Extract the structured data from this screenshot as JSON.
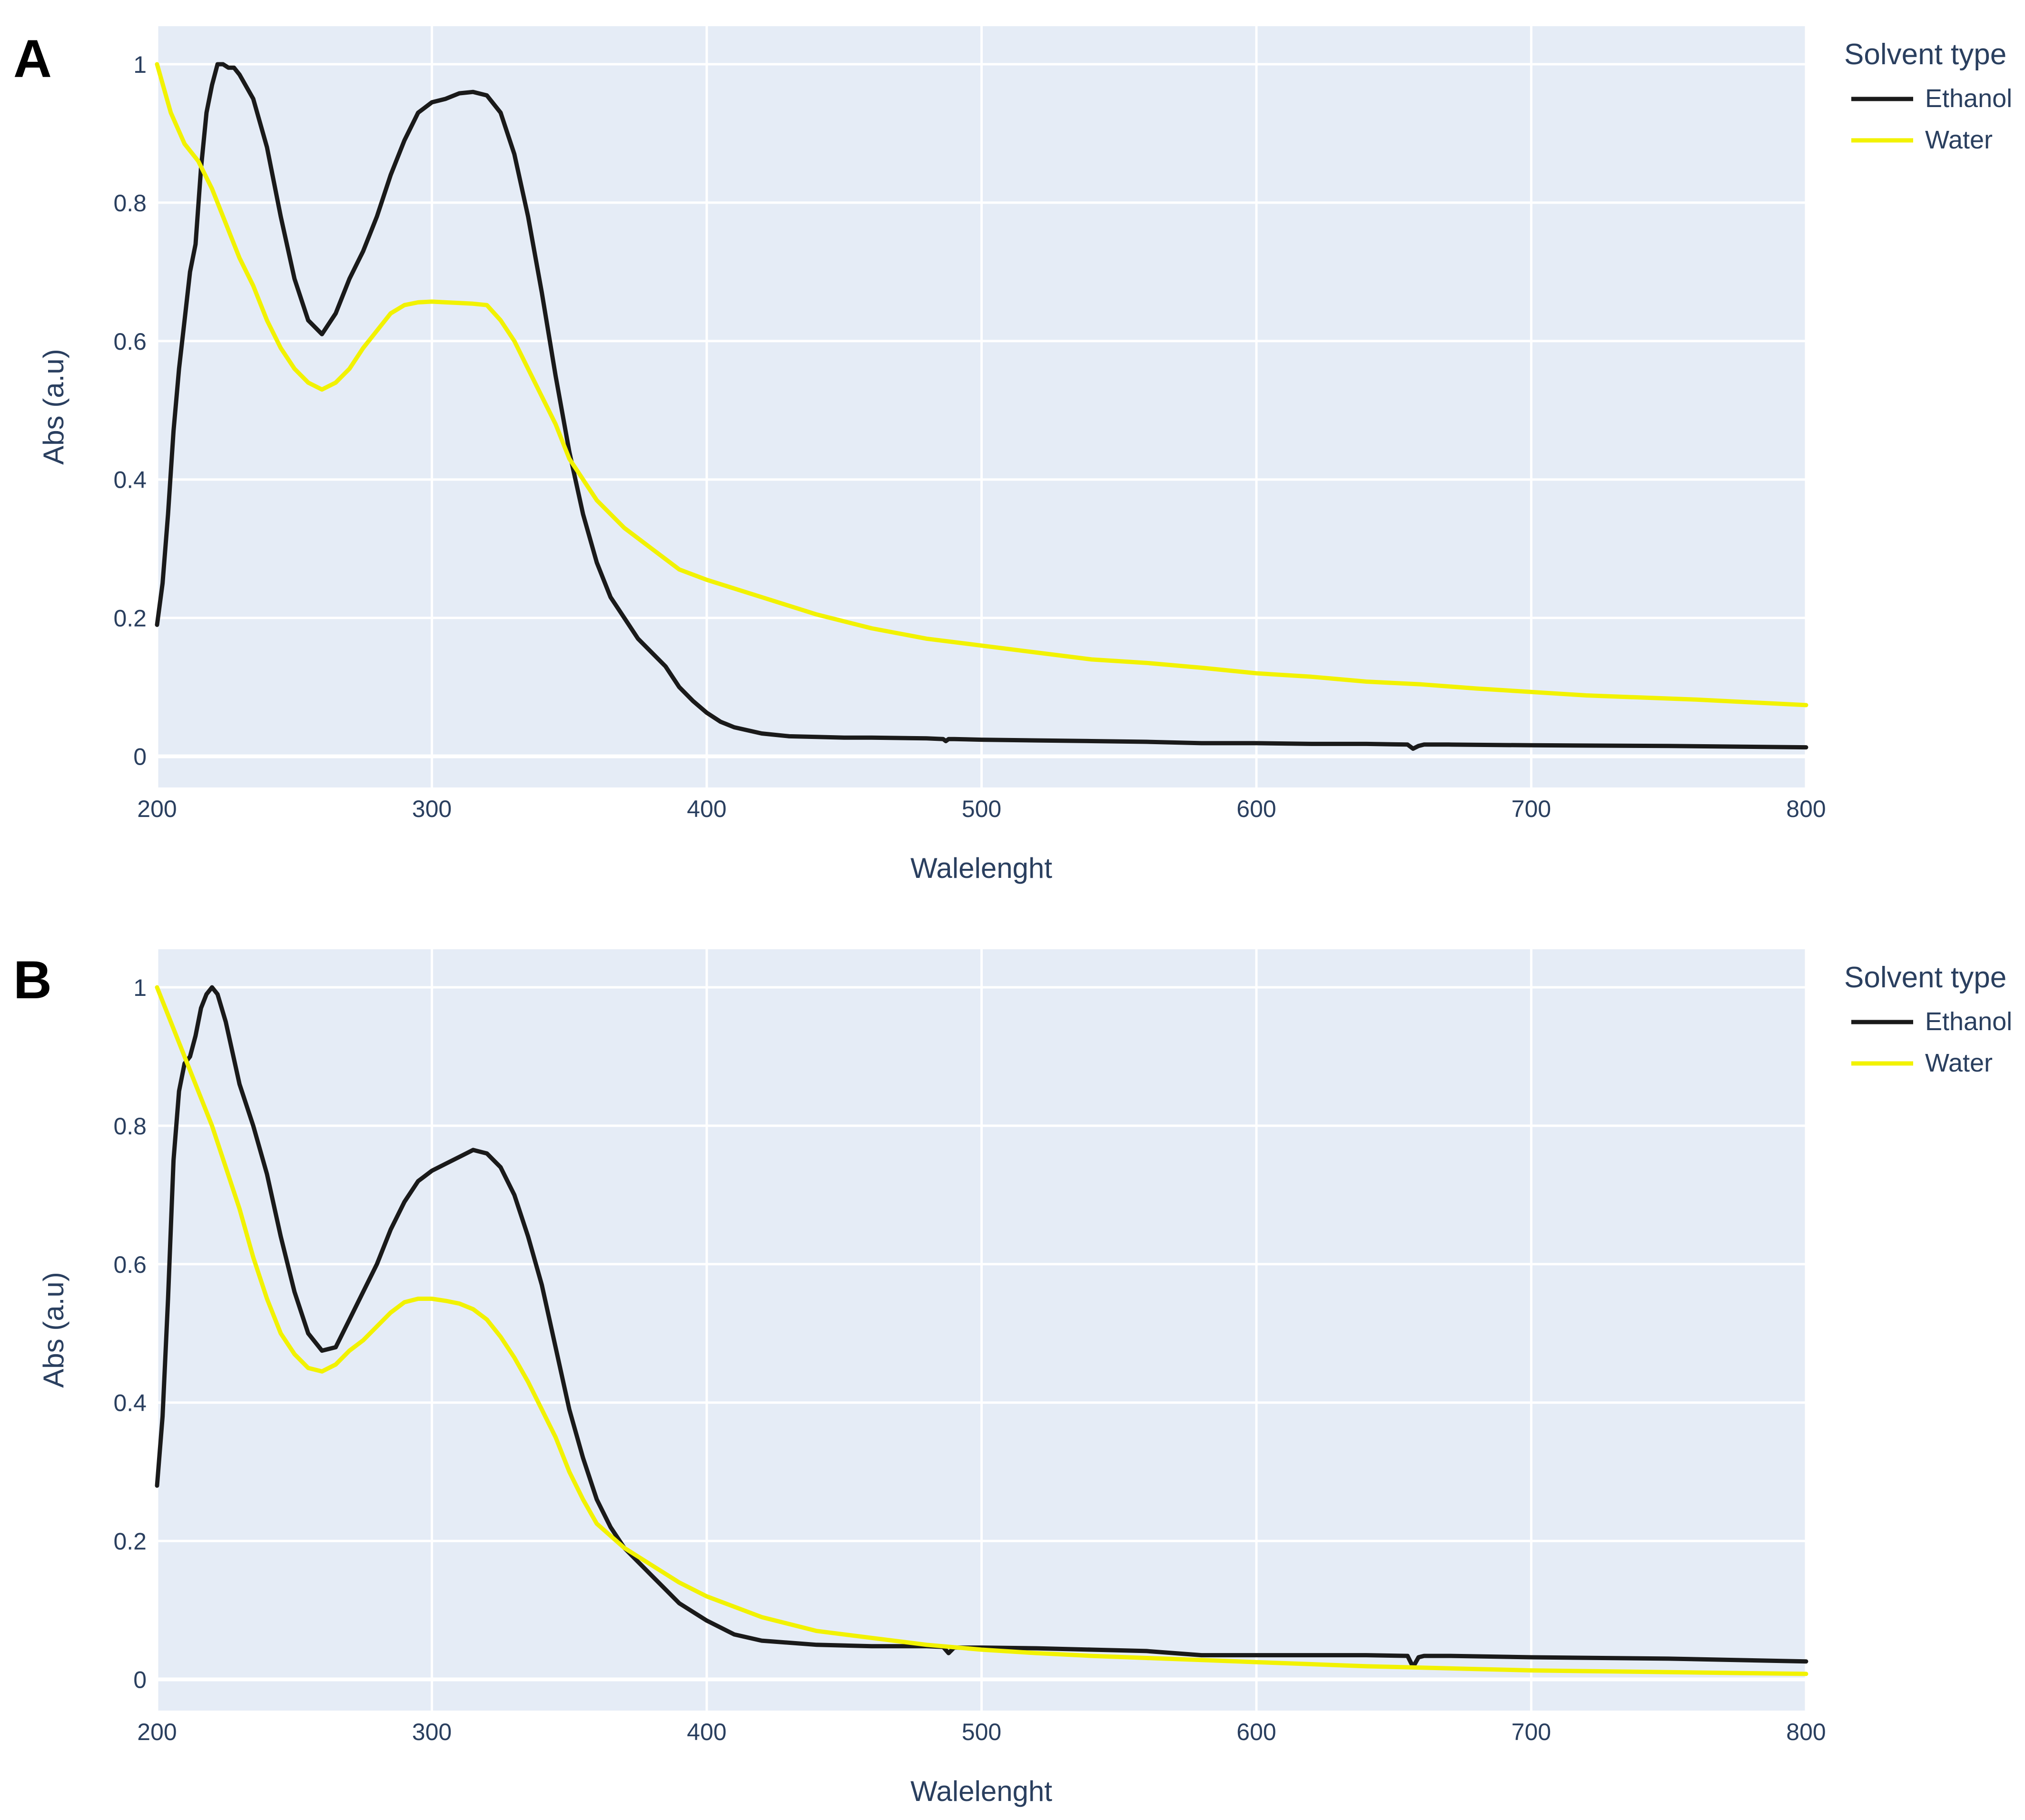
{
  "chart_data": [
    {
      "panel": "A",
      "type": "line",
      "title": "",
      "xlabel": "Walelenght",
      "ylabel": "Abs (a.u)",
      "xlim": [
        200,
        800
      ],
      "ylim": [
        -0.045,
        1.055
      ],
      "x_ticks": [
        "200",
        "300",
        "400",
        "500",
        "600",
        "700",
        "800"
      ],
      "y_ticks": [
        "0",
        "0.2",
        "0.4",
        "0.6",
        "0.8",
        "1"
      ],
      "x_tick_values": [
        200,
        300,
        400,
        500,
        600,
        700,
        800
      ],
      "y_tick_values": [
        0,
        0.2,
        0.4,
        0.6,
        0.8,
        1
      ],
      "grid": true,
      "legend": {
        "title": "Solvent type",
        "placement": "top-right"
      },
      "series": [
        {
          "name": "Ethanol",
          "color": "#1a1a1a",
          "x": [
            200,
            202,
            204,
            206,
            208,
            210,
            212,
            214,
            216,
            218,
            220,
            222,
            224,
            226,
            228,
            230,
            235,
            240,
            245,
            250,
            255,
            260,
            265,
            270,
            275,
            280,
            285,
            290,
            295,
            300,
            305,
            310,
            315,
            320,
            325,
            330,
            335,
            340,
            345,
            350,
            355,
            360,
            365,
            370,
            375,
            380,
            385,
            390,
            395,
            400,
            405,
            410,
            420,
            430,
            440,
            450,
            460,
            480,
            486,
            487,
            488,
            490,
            500,
            520,
            540,
            560,
            580,
            600,
            620,
            640,
            655,
            657,
            659,
            661,
            670,
            700,
            750,
            800
          ],
          "y": [
            0.19,
            0.25,
            0.35,
            0.47,
            0.56,
            0.63,
            0.7,
            0.74,
            0.85,
            0.93,
            0.97,
            1.0,
            1.0,
            0.995,
            0.995,
            0.985,
            0.95,
            0.88,
            0.78,
            0.69,
            0.63,
            0.61,
            0.64,
            0.69,
            0.73,
            0.78,
            0.84,
            0.89,
            0.93,
            0.945,
            0.95,
            0.958,
            0.96,
            0.955,
            0.93,
            0.87,
            0.78,
            0.67,
            0.55,
            0.44,
            0.35,
            0.28,
            0.23,
            0.2,
            0.17,
            0.15,
            0.13,
            0.1,
            0.08,
            0.063,
            0.05,
            0.042,
            0.033,
            0.029,
            0.028,
            0.027,
            0.027,
            0.026,
            0.025,
            0.022,
            0.025,
            0.025,
            0.024,
            0.023,
            0.022,
            0.021,
            0.019,
            0.019,
            0.018,
            0.018,
            0.017,
            0.011,
            0.015,
            0.017,
            0.017,
            0.016,
            0.015,
            0.013
          ]
        },
        {
          "name": "Water",
          "color": "#f2f200",
          "x": [
            200,
            205,
            210,
            215,
            220,
            225,
            230,
            235,
            240,
            245,
            250,
            255,
            260,
            265,
            270,
            275,
            280,
            285,
            290,
            295,
            300,
            305,
            310,
            315,
            320,
            325,
            330,
            335,
            340,
            345,
            350,
            355,
            360,
            370,
            380,
            390,
            400,
            420,
            440,
            460,
            480,
            500,
            520,
            540,
            560,
            580,
            600,
            620,
            640,
            660,
            680,
            700,
            720,
            740,
            760,
            780,
            800
          ],
          "y": [
            1.0,
            0.93,
            0.885,
            0.86,
            0.82,
            0.77,
            0.72,
            0.68,
            0.63,
            0.59,
            0.56,
            0.54,
            0.53,
            0.54,
            0.56,
            0.59,
            0.615,
            0.64,
            0.652,
            0.656,
            0.657,
            0.656,
            0.655,
            0.654,
            0.652,
            0.63,
            0.6,
            0.56,
            0.52,
            0.48,
            0.43,
            0.4,
            0.37,
            0.33,
            0.3,
            0.27,
            0.255,
            0.23,
            0.205,
            0.185,
            0.17,
            0.16,
            0.15,
            0.14,
            0.135,
            0.128,
            0.12,
            0.115,
            0.108,
            0.104,
            0.098,
            0.093,
            0.088,
            0.085,
            0.082,
            0.078,
            0.074
          ]
        }
      ]
    },
    {
      "panel": "B",
      "type": "line",
      "title": "",
      "xlabel": "Walelenght",
      "ylabel": "Abs (a.u)",
      "xlim": [
        200,
        800
      ],
      "ylim": [
        -0.045,
        1.055
      ],
      "x_ticks": [
        "200",
        "300",
        "400",
        "500",
        "600",
        "700",
        "800"
      ],
      "y_ticks": [
        "0",
        "0.2",
        "0.4",
        "0.6",
        "0.8",
        "1"
      ],
      "x_tick_values": [
        200,
        300,
        400,
        500,
        600,
        700,
        800
      ],
      "y_tick_values": [
        0,
        0.2,
        0.4,
        0.6,
        0.8,
        1
      ],
      "grid": true,
      "legend": {
        "title": "Solvent type",
        "placement": "top-right"
      },
      "series": [
        {
          "name": "Ethanol",
          "color": "#1a1a1a",
          "x": [
            200,
            202,
            204,
            206,
            208,
            210,
            212,
            214,
            216,
            218,
            220,
            222,
            225,
            230,
            235,
            240,
            245,
            250,
            255,
            260,
            265,
            270,
            275,
            280,
            285,
            290,
            295,
            300,
            305,
            310,
            315,
            320,
            325,
            330,
            335,
            340,
            345,
            350,
            355,
            360,
            365,
            370,
            375,
            380,
            390,
            400,
            410,
            420,
            440,
            460,
            480,
            486,
            488,
            490,
            500,
            520,
            540,
            560,
            580,
            600,
            620,
            640,
            655,
            657,
            659,
            661,
            670,
            700,
            750,
            800
          ],
          "y": [
            0.28,
            0.38,
            0.55,
            0.75,
            0.85,
            0.89,
            0.9,
            0.93,
            0.97,
            0.99,
            1.0,
            0.99,
            0.95,
            0.86,
            0.8,
            0.73,
            0.64,
            0.56,
            0.5,
            0.475,
            0.48,
            0.52,
            0.56,
            0.6,
            0.65,
            0.69,
            0.72,
            0.735,
            0.745,
            0.755,
            0.765,
            0.76,
            0.74,
            0.7,
            0.64,
            0.57,
            0.48,
            0.39,
            0.32,
            0.26,
            0.22,
            0.19,
            0.17,
            0.15,
            0.11,
            0.085,
            0.065,
            0.056,
            0.05,
            0.048,
            0.048,
            0.047,
            0.038,
            0.046,
            0.046,
            0.045,
            0.043,
            0.041,
            0.035,
            0.035,
            0.035,
            0.035,
            0.034,
            0.018,
            0.032,
            0.034,
            0.034,
            0.032,
            0.03,
            0.026
          ]
        },
        {
          "name": "Water",
          "color": "#f2f200",
          "x": [
            200,
            205,
            210,
            215,
            220,
            225,
            230,
            235,
            240,
            245,
            250,
            255,
            260,
            265,
            270,
            275,
            280,
            285,
            290,
            295,
            300,
            305,
            310,
            315,
            320,
            325,
            330,
            335,
            340,
            345,
            350,
            355,
            360,
            370,
            380,
            390,
            400,
            420,
            440,
            460,
            480,
            500,
            520,
            540,
            560,
            580,
            600,
            620,
            640,
            660,
            680,
            700,
            720,
            740,
            760,
            780,
            800
          ],
          "y": [
            1.0,
            0.95,
            0.9,
            0.85,
            0.8,
            0.74,
            0.68,
            0.61,
            0.55,
            0.5,
            0.47,
            0.45,
            0.445,
            0.455,
            0.475,
            0.49,
            0.51,
            0.53,
            0.545,
            0.55,
            0.55,
            0.547,
            0.543,
            0.535,
            0.52,
            0.495,
            0.465,
            0.43,
            0.39,
            0.35,
            0.3,
            0.26,
            0.225,
            0.19,
            0.165,
            0.14,
            0.12,
            0.09,
            0.07,
            0.06,
            0.05,
            0.043,
            0.038,
            0.034,
            0.031,
            0.028,
            0.025,
            0.022,
            0.019,
            0.017,
            0.015,
            0.013,
            0.012,
            0.011,
            0.01,
            0.009,
            0.008
          ]
        }
      ]
    }
  ]
}
